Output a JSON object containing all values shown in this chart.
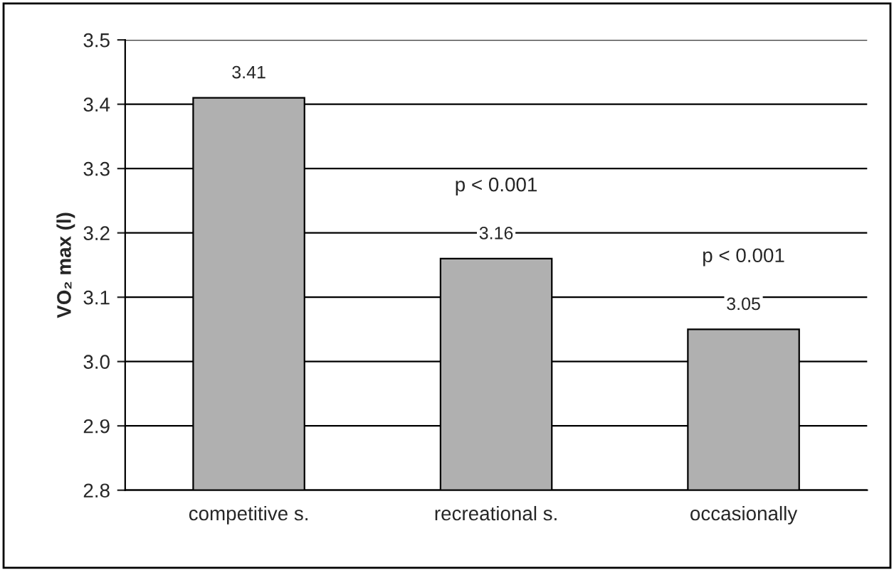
{
  "chart_data": {
    "type": "bar",
    "ylabel": "VO₂ max (l)",
    "categories": [
      "competitive s.",
      "recreational s.",
      "occasionally"
    ],
    "values": [
      3.41,
      3.16,
      3.05
    ],
    "color": "#b0b0b0",
    "ylim": [
      2.8,
      3.5
    ],
    "yticks": [
      2.8,
      2.9,
      {
        "value": 3.0,
        "label": "3.0"
      },
      3.1,
      3.2,
      3.3,
      3.4,
      3.5
    ],
    "grid": "y",
    "data_labels": true,
    "annotations": [
      "p < 0.001",
      "p < 0.001"
    ]
  }
}
